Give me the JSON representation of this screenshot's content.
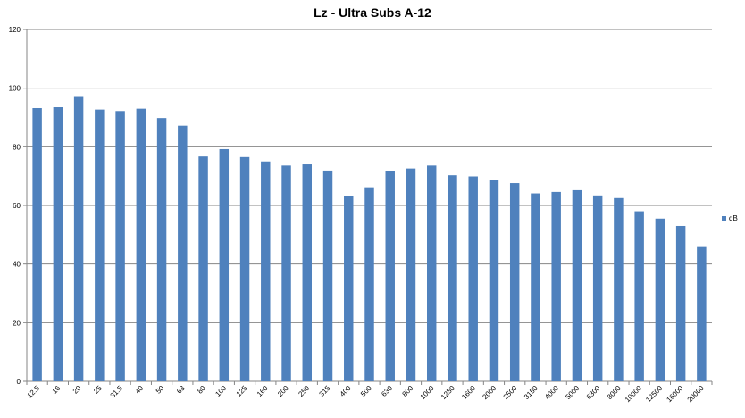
{
  "chart_data": {
    "type": "bar",
    "title": "Lz - Ultra Subs A-12",
    "xlabel": "",
    "ylabel": "",
    "ylim": [
      0,
      120
    ],
    "yticks": [
      0,
      20,
      40,
      60,
      80,
      100,
      120
    ],
    "grid": true,
    "legend_position": "right",
    "categories": [
      "12.5",
      "16",
      "20",
      "25",
      "31.5",
      "40",
      "50",
      "63",
      "80",
      "100",
      "125",
      "160",
      "200",
      "250",
      "315",
      "400",
      "500",
      "630",
      "800",
      "1000",
      "1250",
      "1600",
      "2000",
      "2500",
      "3150",
      "4000",
      "5000",
      "6300",
      "8000",
      "10000",
      "12500",
      "16000",
      "20000"
    ],
    "series": [
      {
        "name": "dB",
        "color": "#4f81bd",
        "values": [
          93.2,
          93.5,
          97.0,
          92.7,
          92.2,
          93.0,
          89.8,
          87.2,
          76.7,
          79.2,
          76.5,
          75.0,
          73.6,
          74.0,
          71.9,
          63.3,
          66.2,
          71.7,
          72.6,
          73.6,
          70.3,
          69.9,
          68.6,
          67.6,
          64.1,
          64.6,
          65.2,
          63.4,
          62.5,
          58.0,
          55.5,
          53.0,
          46.1
        ]
      }
    ]
  }
}
